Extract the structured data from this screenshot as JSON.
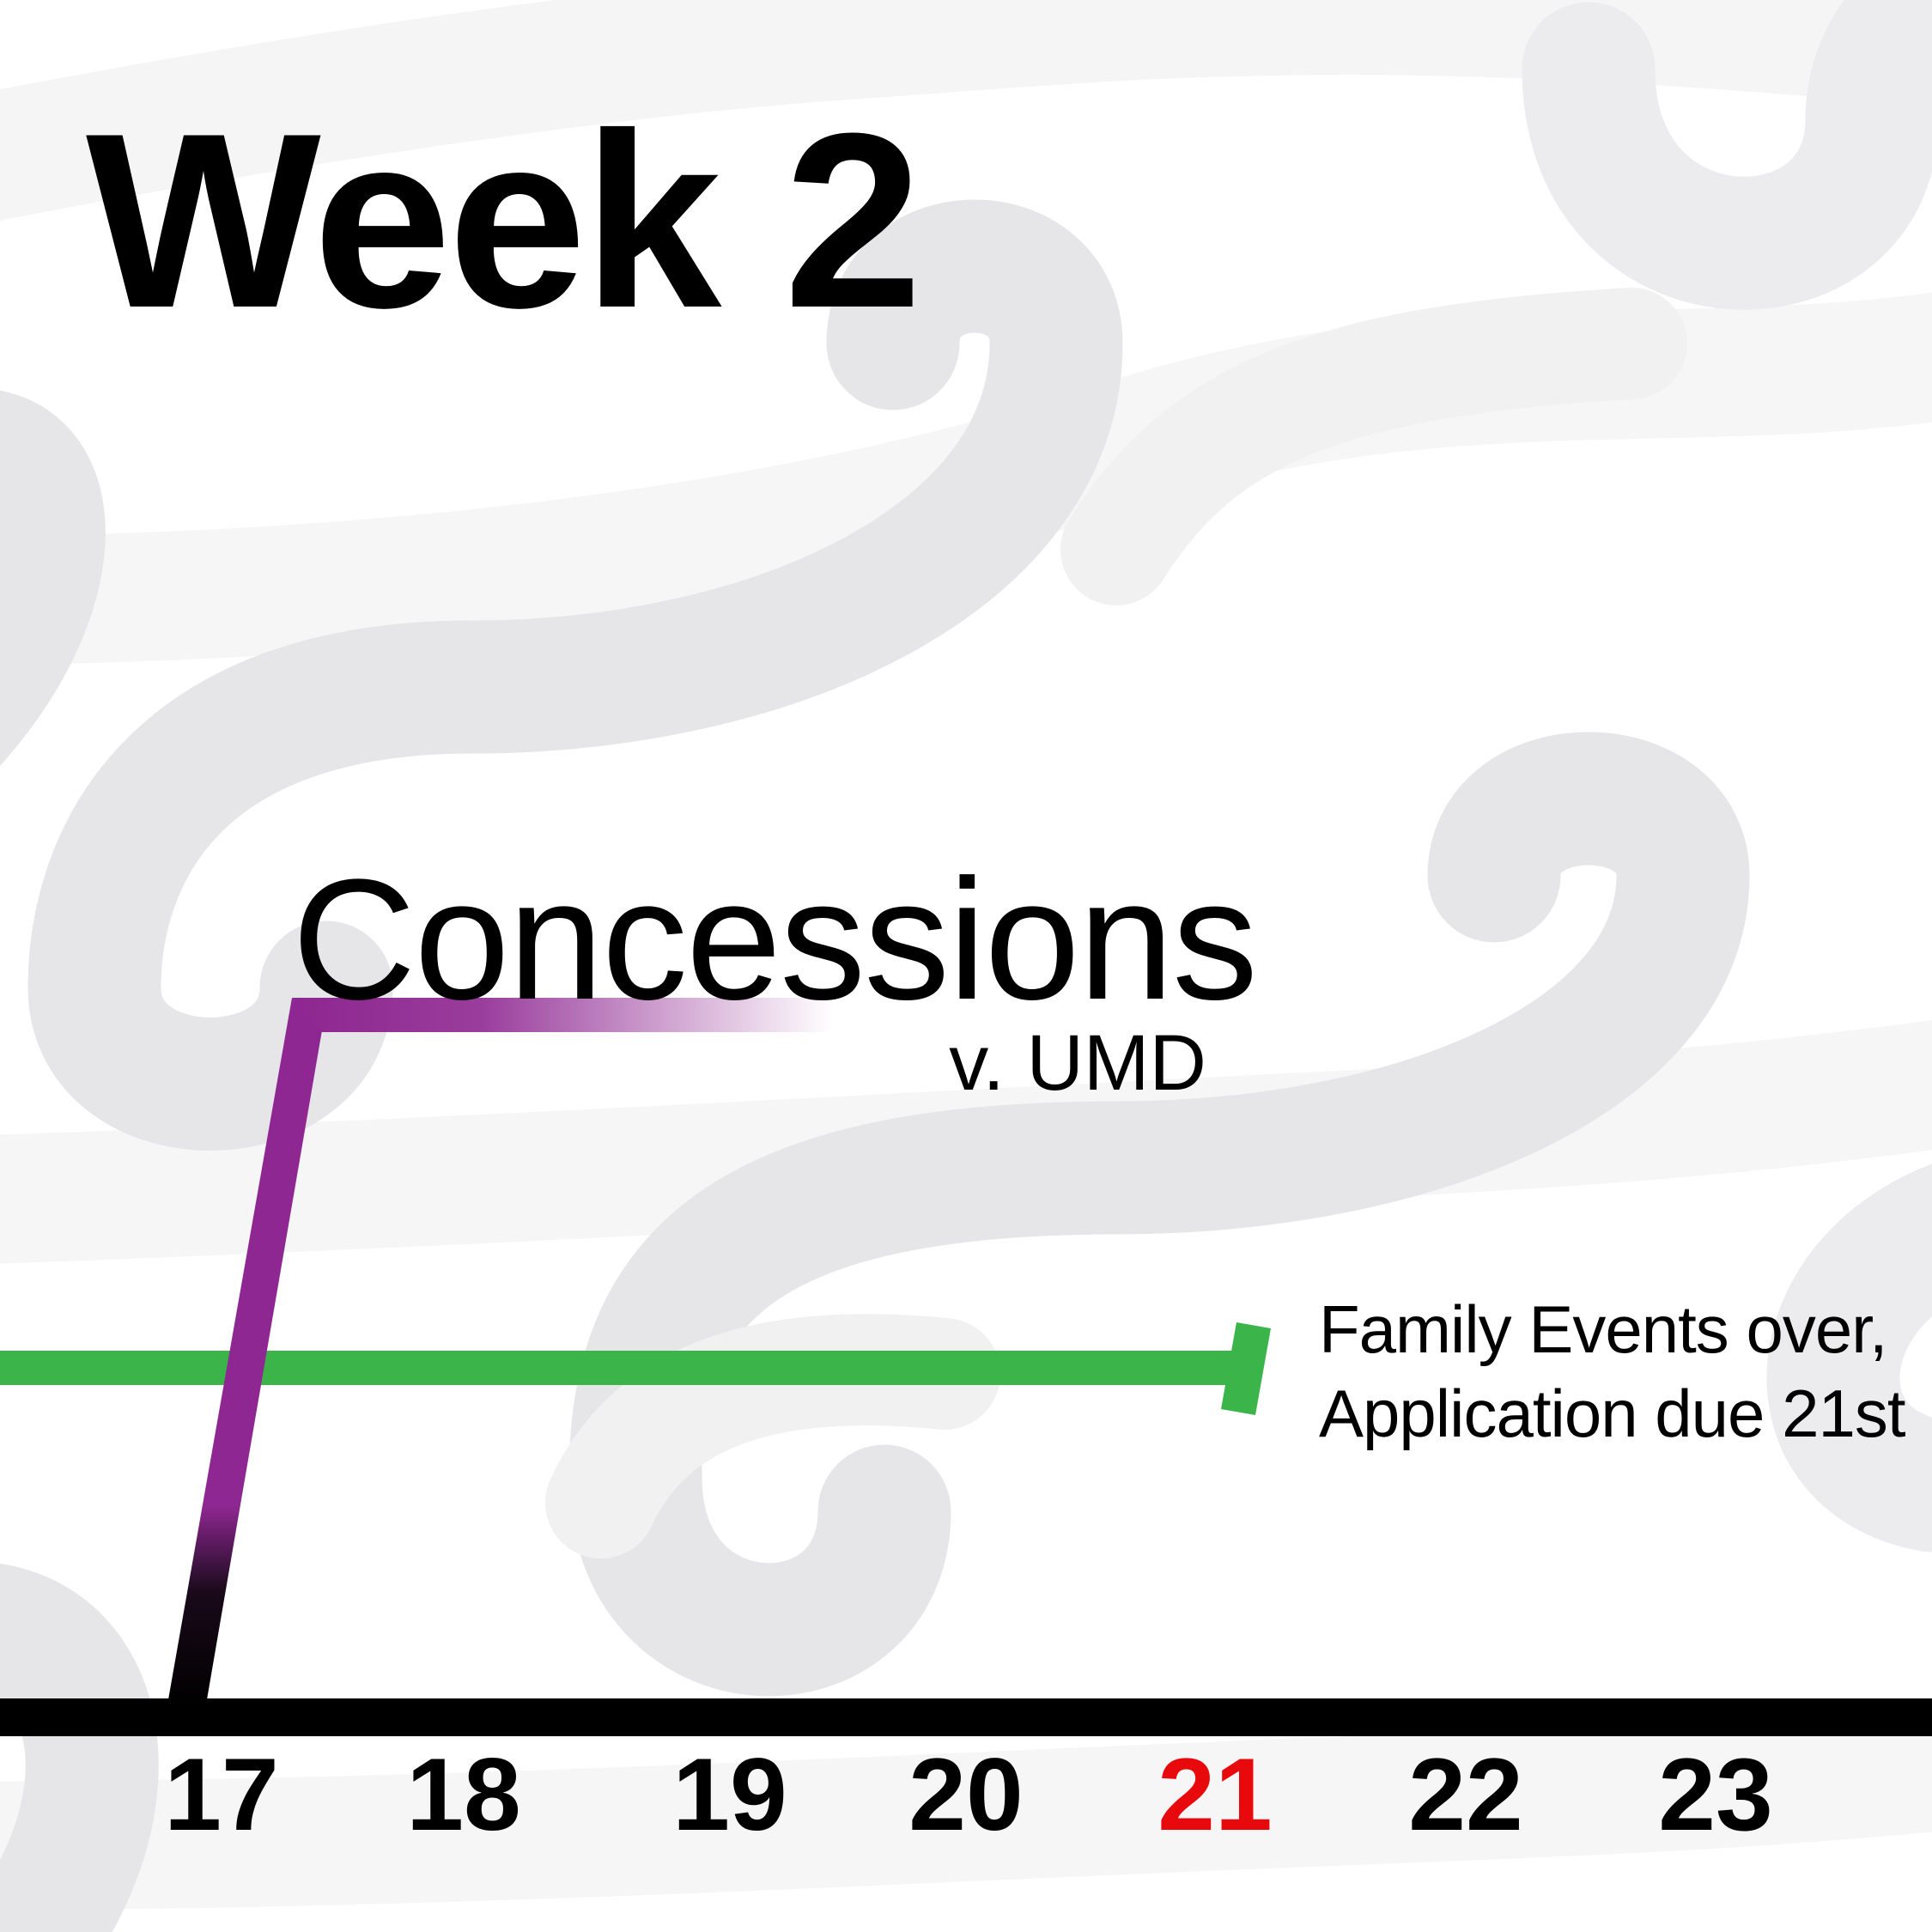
{
  "title": "Week 2",
  "event": {
    "title": "Concessions",
    "subtitle": "v. UMD"
  },
  "note": {
    "line1": "Family Events over,",
    "line2": "Application due 21st"
  },
  "days": [
    {
      "label": "17",
      "color": "#000000"
    },
    {
      "label": "18",
      "color": "#000000"
    },
    {
      "label": "19",
      "color": "#000000"
    },
    {
      "label": "20",
      "color": "#000000"
    },
    {
      "label": "21",
      "color": "#e8090c"
    },
    {
      "label": "22",
      "color": "#000000"
    },
    {
      "label": "23",
      "color": "#000000"
    }
  ],
  "colors": {
    "concessions_line": "#8e2791",
    "family_events_line": "#3bb44a",
    "axis": "#000000",
    "background_swirl": "#e4e4e6"
  }
}
